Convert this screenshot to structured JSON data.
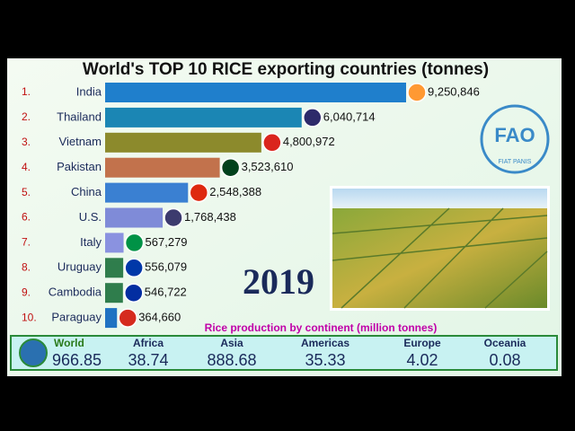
{
  "chart_data": {
    "type": "bar",
    "title": "World's TOP 10 RICE exporting countries (tonnes)",
    "ranks": [
      "1.",
      "2.",
      "3.",
      "4.",
      "5.",
      "6.",
      "7.",
      "8.",
      "9.",
      "10."
    ],
    "categories": [
      "India",
      "Thailand",
      "Vietnam",
      "Pakistan",
      "China",
      "U.S.",
      "Italy",
      "Uruguay",
      "Cambodia",
      "Paraguay"
    ],
    "values": [
      9250846,
      6040714,
      4800972,
      3523610,
      2548388,
      1768438,
      567279,
      556079,
      546722,
      364660
    ],
    "value_labels": [
      "9,250,846",
      "6,040,714",
      "4,800,972",
      "3,523,610",
      "2,548,388",
      "1,768,438",
      "567,279",
      "556,079",
      "546,722",
      "364,660"
    ],
    "colors": [
      "#1f7fcc",
      "#1b86b4",
      "#8c8a2c",
      "#c2724c",
      "#3a80d2",
      "#7f8bd8",
      "#8a92e0",
      "#2f7d4c",
      "#2f7d4c",
      "#1f72c2"
    ],
    "year": "2019",
    "regions_title": "Rice production by continent (million tonnes)",
    "regions": [
      {
        "name": "World",
        "value": 966.85
      },
      {
        "name": "Africa",
        "value": 38.74
      },
      {
        "name": "Asia",
        "value": 888.68
      },
      {
        "name": "Americas",
        "value": 35.33
      },
      {
        "name": "Europe",
        "value": 4.02
      },
      {
        "name": "Oceania",
        "value": 0.08
      }
    ]
  },
  "logo": {
    "text": "FAO",
    "motto": "FIAT PANIS"
  }
}
